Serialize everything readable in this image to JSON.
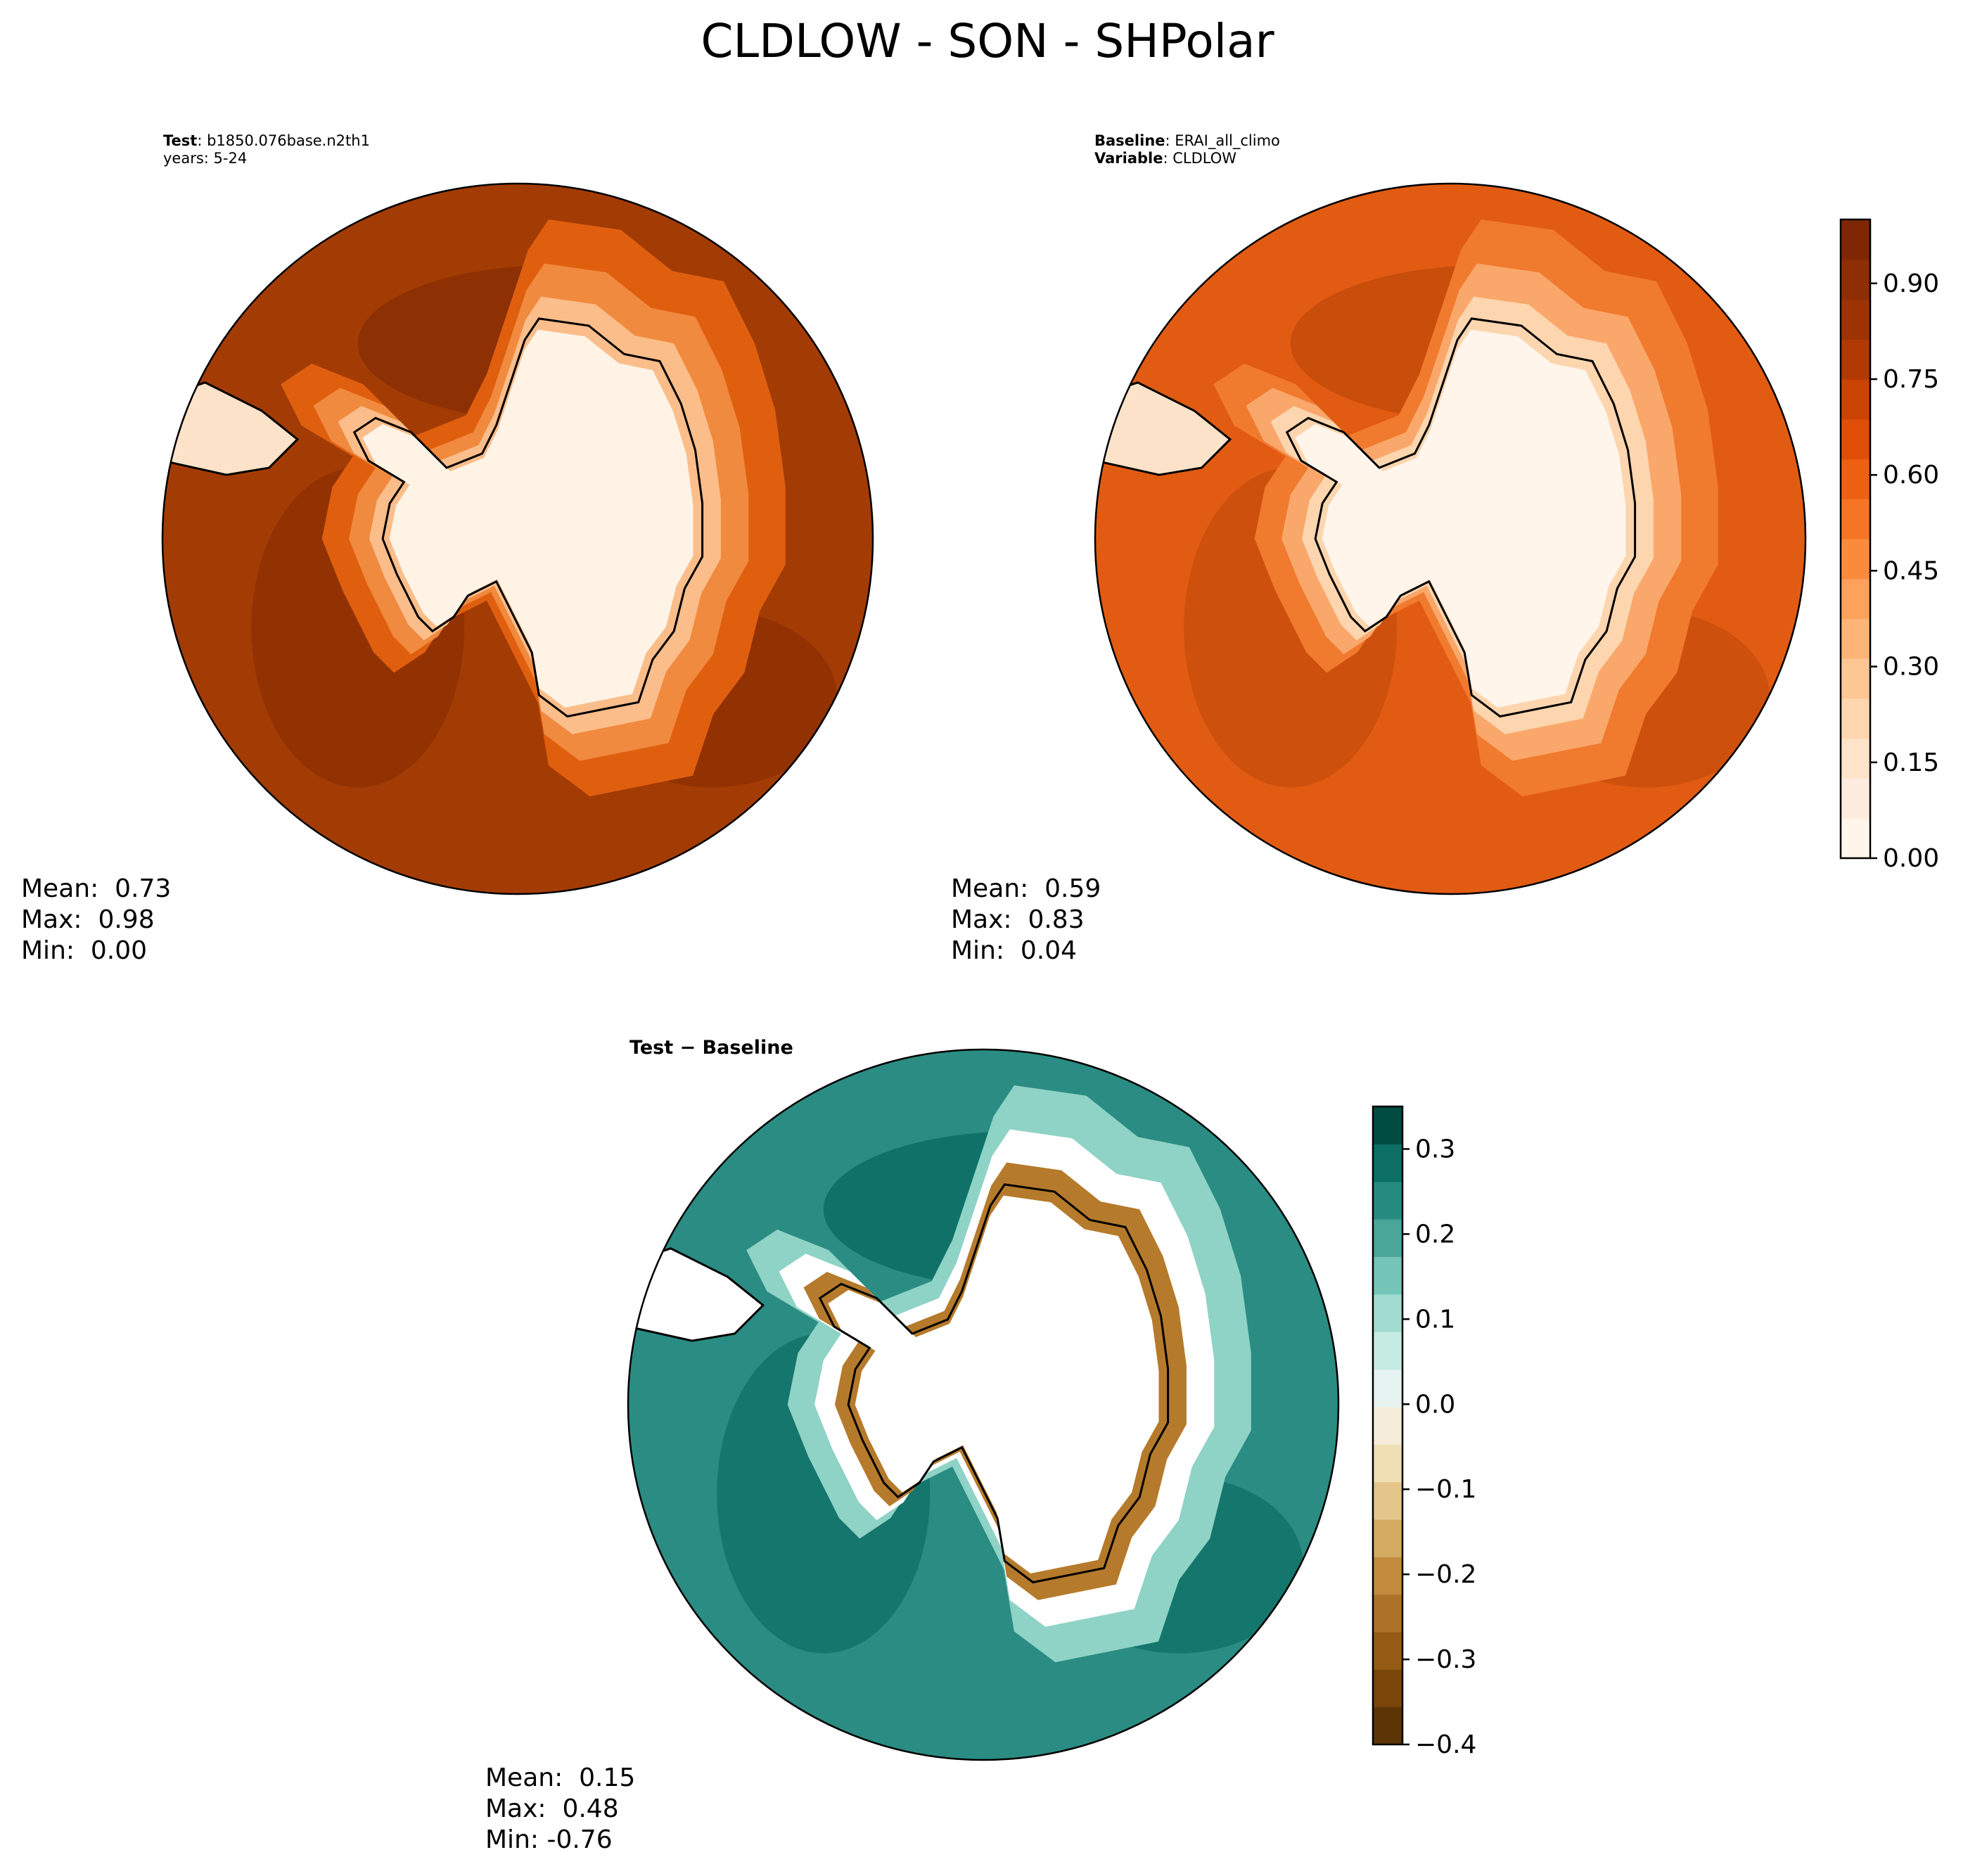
{
  "chart_data": {
    "type": "contour-map",
    "suptitle": "CLDLOW - SON - SHPolar",
    "panels": [
      {
        "id": "test",
        "header": [
          {
            "label": "Test",
            "sep": ": ",
            "value": "b1850.076base.n2th1"
          },
          {
            "label": "",
            "sep": "",
            "value": "years: 5-24"
          }
        ],
        "stats": {
          "mean": "Mean:  0.73",
          "max": "Max:  0.98",
          "min": "Min:  0.00"
        },
        "ocean_color": "#a33c04",
        "dark_color": "#8a2e03",
        "ice_colors": [
          "#e05f0f",
          "#f08a3e",
          "#fbbd8a",
          "#fff3e6"
        ]
      },
      {
        "id": "baseline",
        "header": [
          {
            "label": "Baseline",
            "sep": ": ",
            "value": "ERAI_all_climo"
          },
          {
            "label": "Variable",
            "sep": ": ",
            "value": "CLDLOW"
          }
        ],
        "stats": {
          "mean": "Mean:  0.59",
          "max": "Max:  0.83",
          "min": "Min:  0.04"
        },
        "ocean_color": "#e25b12",
        "dark_color": "#c44b0a",
        "ice_colors": [
          "#f07a2e",
          "#f9a76a",
          "#fdd5ae",
          "#fff5eb"
        ]
      },
      {
        "id": "diff",
        "title": "Test − Baseline",
        "stats": {
          "mean": "Mean:  0.15",
          "max": "Max:  0.48",
          "min": "Min: -0.76"
        },
        "ocean_color": "#2a8c82",
        "dark_color": "#0b6c63",
        "ice_colors": [
          "#8fd3c6",
          "#ffffff",
          "#b57a2b",
          "#ffffff"
        ]
      }
    ],
    "colorbars": [
      {
        "id": "cldlow",
        "range": [
          0.0,
          1.0
        ],
        "ticks": [
          0.0,
          0.15,
          0.3,
          0.45,
          0.6,
          0.75,
          0.9
        ],
        "tick_labels": [
          "0.00",
          "0.15",
          "0.30",
          "0.45",
          "0.60",
          "0.75",
          "0.90"
        ],
        "colors": [
          "#fff5eb",
          "#feedde",
          "#fee3c8",
          "#fdd6b0",
          "#fdc795",
          "#fdb577",
          "#fda15b",
          "#fb8a3c",
          "#f67524",
          "#ee6012",
          "#e14e08",
          "#cb4302",
          "#b13903",
          "#9d3303",
          "#8f2d04",
          "#7f2704"
        ]
      },
      {
        "id": "diff",
        "range": [
          -0.4,
          0.35
        ],
        "ticks": [
          -0.4,
          -0.3,
          -0.2,
          -0.1,
          0.0,
          0.1,
          0.2,
          0.3
        ],
        "tick_labels": [
          "−0.4",
          "−0.3",
          "−0.2",
          "−0.1",
          "0.0",
          "0.1",
          "0.2",
          "0.3"
        ],
        "colors": [
          "#5c3405",
          "#7a4509",
          "#955b15",
          "#ad7127",
          "#c28b3e",
          "#d5aa62",
          "#e4c68a",
          "#f0dfb4",
          "#f5edd9",
          "#e6f3f0",
          "#c6ebe3",
          "#a1dcd1",
          "#74c5b8",
          "#4aa699",
          "#268b80",
          "#0d6f65",
          "#004c42"
        ]
      }
    ]
  }
}
